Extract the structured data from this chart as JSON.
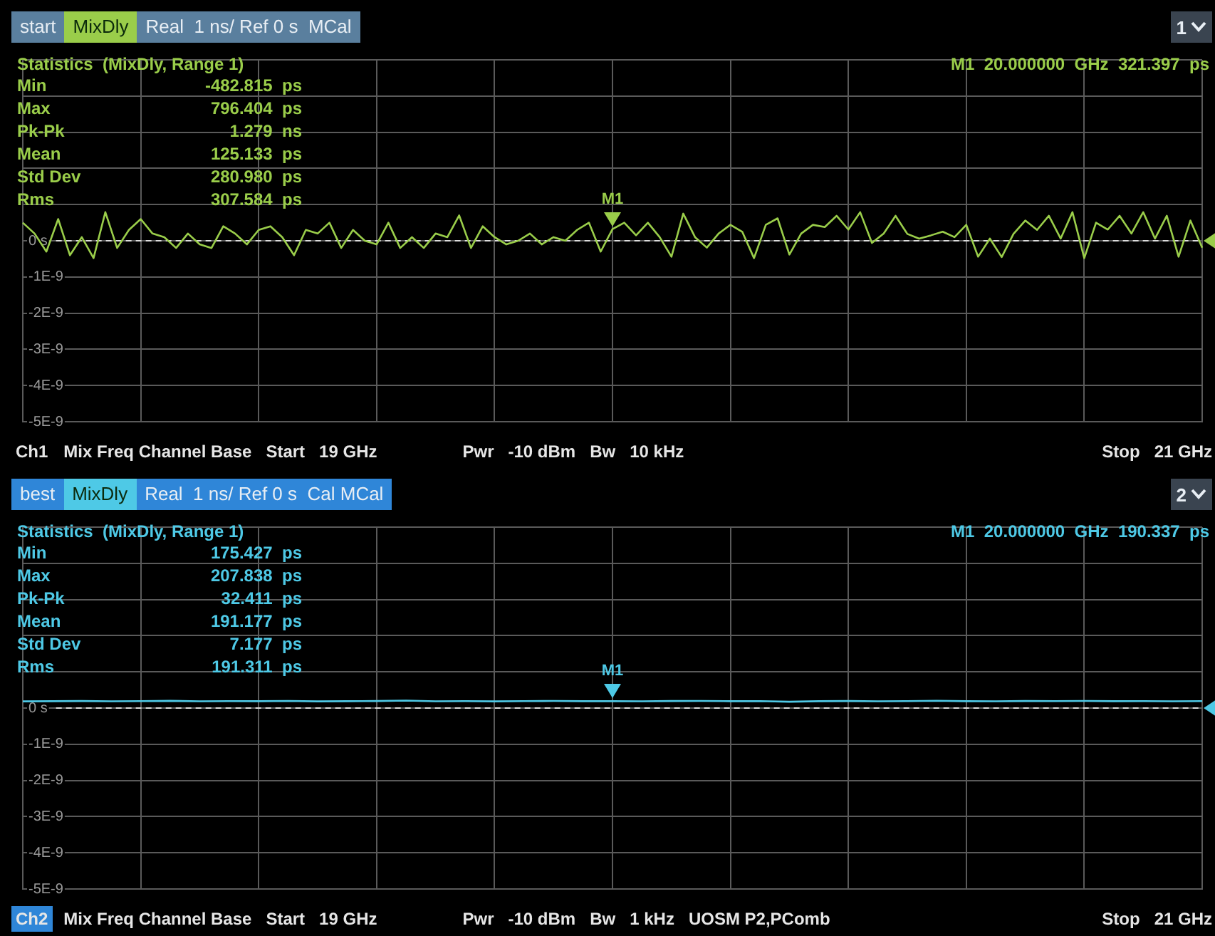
{
  "chart_data": [
    {
      "type": "line",
      "title": "start",
      "subtitle": "MixDly",
      "categories": [
        null,
        null,
        null,
        null,
        null,
        null,
        null,
        null,
        null,
        null,
        null,
        null,
        null,
        null,
        null,
        null,
        null,
        null,
        null,
        null,
        null,
        null,
        null,
        null,
        null,
        null,
        null,
        null,
        null,
        null,
        null,
        null,
        null,
        null,
        null,
        null,
        null,
        null,
        null,
        null,
        null,
        null,
        null,
        null,
        null,
        null,
        null,
        null,
        null,
        null,
        null,
        null,
        null,
        null,
        null,
        null,
        null,
        null,
        null,
        null,
        null,
        null,
        null,
        null,
        null,
        null,
        null,
        null,
        null,
        null,
        null,
        null,
        null,
        null,
        null,
        null,
        null,
        null,
        null,
        null,
        null,
        null,
        null,
        null,
        null,
        null,
        null,
        null,
        null,
        null,
        null,
        null,
        null,
        null,
        null,
        null,
        null,
        null,
        null,
        null,
        null
      ],
      "ylim": [
        -5e-09,
        5e-09
      ],
      "yticks": [
        {
          "value": -5e-09,
          "label": "-5E-9"
        },
        {
          "value": -4e-09,
          "label": "-4E-9"
        },
        {
          "value": -3e-09,
          "label": "-3E-9"
        },
        {
          "value": -2e-09,
          "label": "-2E-9"
        },
        {
          "value": -1e-09,
          "label": "-1E-9"
        },
        {
          "value": 0,
          "label": "0 s"
        },
        {
          "value": 1e-09,
          "label": null
        },
        {
          "value": 2e-09,
          "label": null
        },
        {
          "value": 3e-09,
          "label": null
        },
        {
          "value": 4e-09,
          "label": null
        },
        {
          "value": 5e-09,
          "label": null
        }
      ],
      "grid": true,
      "tick_labels": "y",
      "marker": "none",
      "line_style": "solid",
      "series": [
        {
          "color": "#9acd4a",
          "values": [
            5e-10,
            2e-10,
            -3e-10,
            6e-10,
            -4e-10,
            1e-10,
            -4.8e-10,
            7.9e-10,
            -2e-10,
            3e-10,
            6e-10,
            2e-10,
            1e-10,
            -2e-10,
            2e-10,
            -1e-10,
            -2e-10,
            4e-10,
            2e-10,
            -1e-10,
            3e-10,
            4e-10,
            1e-10,
            -4e-10,
            3e-10,
            2e-10,
            5e-10,
            -2e-10,
            3e-10,
            0,
            -1e-10,
            5e-10,
            -2e-10,
            1e-10,
            -2e-10,
            2e-10,
            1e-10,
            7e-10,
            -2e-10,
            4e-10,
            1e-10,
            -1e-10,
            0,
            2e-10,
            -1e-10,
            1e-10,
            0,
            3e-10,
            5e-10,
            -3e-10,
            3.21e-10,
            5e-10,
            1.5e-10,
            5e-10,
            1e-10,
            -4.4e-10,
            7.5e-10,
            1e-10,
            -1.9e-10,
            2e-10,
            4.4e-10,
            2.5e-10,
            -4.8e-10,
            4.4e-10,
            6.2e-10,
            -3.8e-10,
            2e-10,
            4.4e-10,
            3.8e-10,
            6.9e-10,
            3.1e-10,
            7.9e-10,
            -6e-11,
            2e-10,
            6.9e-10,
            1.9e-10,
            6e-11,
            1.5e-10,
            2.5e-10,
            1e-10,
            4.4e-10,
            -4.4e-10,
            6e-11,
            -4.5e-10,
            1.9e-10,
            5.6e-10,
            3e-10,
            6.9e-10,
            6e-11,
            7.9e-10,
            -4.8e-10,
            5e-10,
            3.1e-10,
            6.9e-10,
            2e-10,
            7.9e-10,
            6e-11,
            6.9e-10,
            -4.4e-10,
            5.6e-10,
            -1.9e-10
          ]
        }
      ],
      "ref_lines": [
        {
          "axis": "y",
          "value": 0,
          "color": "#dddddd",
          "line_style": "dashed"
        }
      ],
      "annotations": [
        "Real  1 ns/ Ref 0 s  MCal",
        "1",
        "M1  20.000000  GHz  321.397  ps",
        "Statistics  (MixDly, Range 1)",
        "Min",
        "-482.815  ps",
        "Max",
        "796.404  ps",
        "Pk-Pk",
        "1.279  ns",
        "Mean",
        "125.133  ps",
        "Std Dev",
        "280.980  ps",
        "Rms",
        "307.584  ps",
        "Ch1",
        "Mix Freq Channel Base   Start   19 GHz",
        "Pwr   -10 dBm   Bw   10 kHz",
        "Stop   21 GHz",
        {
          "text": "M1",
          "y": 3.21e-10
        }
      ]
    },
    {
      "type": "line",
      "title": "best",
      "subtitle": "MixDly",
      "categories": [
        null,
        null,
        null,
        null,
        null,
        null,
        null,
        null,
        null,
        null,
        null,
        null,
        null,
        null,
        null,
        null,
        null,
        null,
        null,
        null,
        null,
        null,
        null,
        null,
        null,
        null,
        null,
        null,
        null,
        null,
        null,
        null,
        null,
        null,
        null,
        null,
        null,
        null,
        null,
        null,
        null
      ],
      "ylim": [
        -5e-09,
        5e-09
      ],
      "yticks": [
        {
          "value": -5e-09,
          "label": "-5E-9"
        },
        {
          "value": -4e-09,
          "label": "-4E-9"
        },
        {
          "value": -3e-09,
          "label": "-3E-9"
        },
        {
          "value": -2e-09,
          "label": "-2E-9"
        },
        {
          "value": -1e-09,
          "label": "-1E-9"
        },
        {
          "value": 0,
          "label": "0 s"
        },
        {
          "value": 1e-09,
          "label": null
        },
        {
          "value": 2e-09,
          "label": null
        },
        {
          "value": 3e-09,
          "label": null
        },
        {
          "value": 4e-09,
          "label": null
        },
        {
          "value": 5e-09,
          "label": null
        }
      ],
      "grid": true,
      "tick_labels": "y",
      "marker": "none",
      "line_style": "solid",
      "series": [
        {
          "color": "#4ec9e6",
          "values": [
            1.85e-10,
            1.9e-10,
            1.95e-10,
            1.88e-10,
            1.92e-10,
            2e-10,
            1.86e-10,
            1.93e-10,
            1.9e-10,
            1.97e-10,
            1.84e-10,
            1.9e-10,
            1.95e-10,
            2.08e-10,
            1.88e-10,
            1.91e-10,
            1.85e-10,
            1.93e-10,
            1.96e-10,
            1.9e-10,
            1.903e-10,
            1.87e-10,
            1.94e-10,
            1.98e-10,
            1.89e-10,
            1.92e-10,
            1.75e-10,
            1.9e-10,
            1.95e-10,
            1.88e-10,
            1.93e-10,
            2.02e-10,
            1.9e-10,
            1.86e-10,
            1.94e-10,
            1.91e-10,
            1.97e-10,
            1.89e-10,
            1.92e-10,
            1.88e-10,
            1.93e-10
          ]
        }
      ],
      "ref_lines": [
        {
          "axis": "y",
          "value": 0,
          "color": "#dddddd",
          "line_style": "dashed"
        }
      ],
      "annotations": [
        "Real  1 ns/ Ref 0 s  Cal MCal",
        "2",
        "M1  20.000000  GHz  190.337  ps",
        "Statistics  (MixDly, Range 1)",
        "Min",
        "175.427  ps",
        "Max",
        "207.838  ps",
        "Pk-Pk",
        "32.411  ps",
        "Mean",
        "191.177  ps",
        "Std Dev",
        "7.177  ps",
        "Rms",
        "191.311  ps",
        "Ch2",
        "Mix Freq Channel Base   Start   19 GHz",
        "Pwr   -10 dBm   Bw   1 kHz   UOSM P2,PComb",
        "Stop   21 GHz",
        {
          "text": "M1",
          "y": 1.903e-10
        }
      ]
    }
  ]
}
